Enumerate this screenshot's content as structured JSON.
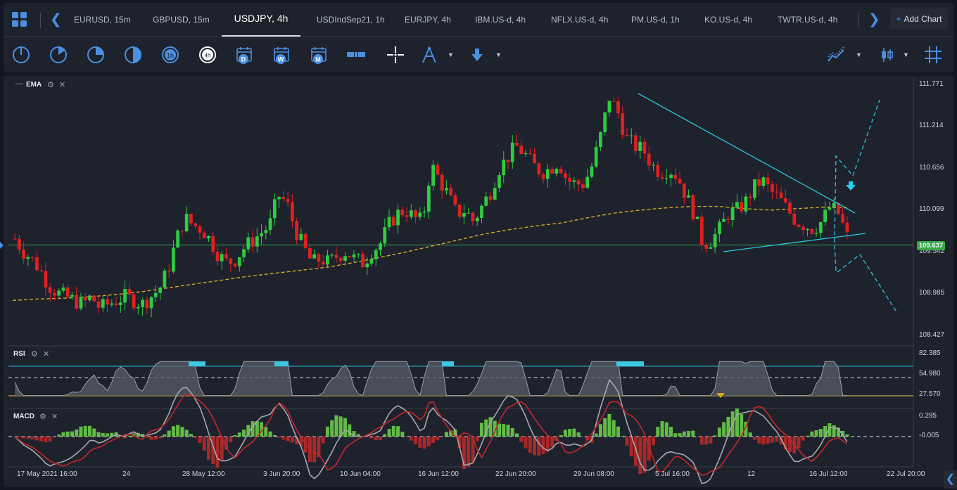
{
  "tabs": [
    {
      "label": "EURUSD, 15m",
      "active": false
    },
    {
      "label": "GBPUSD, 15m",
      "active": false
    },
    {
      "label": "USDJPY, 4h",
      "active": true
    },
    {
      "label": "USDIndSep21, 1h",
      "active": false
    },
    {
      "label": "EURJPY, 4h",
      "active": false
    },
    {
      "label": "IBM.US-d, 4h",
      "active": false
    },
    {
      "label": "NFLX.US-d, 4h",
      "active": false
    },
    {
      "label": "PM.US-d, 1h",
      "active": false
    },
    {
      "label": "KO.US-d, 4h",
      "active": false
    },
    {
      "label": "TWTR.US-d, 4h",
      "active": false
    }
  ],
  "add_chart_label": "Add Chart",
  "toolbar": {
    "icons": [
      "timeframe-1-icon",
      "timeframe-2-icon",
      "timeframe-3-icon",
      "timeframe-4-icon",
      "timeframe-1h-icon",
      "timeframe-4h-icon",
      "calendar-day-icon",
      "calendar-week-icon",
      "calendar-month-icon",
      "bar-chart-icon",
      "crosshair-icon",
      "drawing-tools-icon",
      "arrow-down-icon",
      "indicators-icon",
      "chart-type-icon",
      "grid-icon"
    ],
    "cal_letters": [
      "D",
      "W",
      "M"
    ],
    "tf_label": "4h"
  },
  "colors": {
    "accent": "#4a90e2",
    "bull": "#2ecc40",
    "bear": "#e02020",
    "ema": "#d4a82a",
    "trend": "#29c4d8",
    "price_line": "#36a84a",
    "rsi_upper": "#29b6d8",
    "rsi_lower": "#c8a84a"
  },
  "panels": {
    "price": {
      "label": "EMA"
    },
    "rsi": {
      "label": "RSI"
    },
    "macd": {
      "label": "MACD"
    }
  },
  "price_axis": [
    "111.771",
    "111.214",
    "110.656",
    "110.099",
    "109.542",
    "108.985",
    "108.427"
  ],
  "current_price": "109.637",
  "rsi_axis": [
    "82.385",
    "54.980",
    "27.570"
  ],
  "macd_axis": [
    "0.295",
    "-0.005"
  ],
  "date_labels": [
    "17 May 2021 16:00",
    "24",
    "28 May 12:00",
    "3 Jun 20:00",
    "10 Jun 04:00",
    "16 Jun 12:00",
    "22 Jun 20:00",
    "29 Jun 08:00",
    "5 Jul 16:00",
    "12",
    "16 Jul 12:00",
    "22 Jul 20:00"
  ],
  "chart_data": {
    "type": "candlestick",
    "symbol": "USDJPY",
    "timeframe": "4h",
    "ylim": [
      108.35,
      111.85
    ],
    "close_path": [
      109.72,
      109.55,
      109.45,
      109.3,
      109.1,
      109.0,
      108.95,
      108.9,
      108.85,
      108.95,
      108.8,
      108.85,
      108.9,
      108.95,
      108.9,
      108.85,
      108.95,
      109.05,
      109.3,
      109.7,
      110.0,
      109.9,
      109.85,
      109.7,
      109.5,
      109.4,
      109.45,
      109.6,
      109.7,
      109.8,
      109.9,
      110.3,
      110.2,
      109.85,
      109.6,
      109.4,
      109.45,
      109.4,
      109.5,
      109.55,
      109.45,
      109.4,
      109.55,
      109.65,
      109.9,
      110.05,
      110.1,
      110.0,
      109.95,
      110.7,
      110.5,
      110.3,
      110.05,
      110.1,
      109.95,
      110.15,
      110.35,
      110.65,
      110.8,
      110.95,
      110.85,
      110.7,
      110.6,
      110.65,
      110.75,
      110.5,
      110.45,
      110.45,
      110.7,
      111.1,
      111.6,
      111.4,
      111.05,
      110.95,
      110.9,
      110.7,
      110.6,
      110.65,
      110.55,
      110.3,
      110.05,
      109.65,
      109.7,
      109.85,
      110.05,
      110.1,
      110.2,
      110.4,
      110.5,
      110.35,
      110.25,
      110.1,
      109.95,
      109.9,
      109.85,
      109.95,
      110.15,
      110.05,
      109.75
    ],
    "ema_path": [
      108.9,
      108.92,
      108.93,
      108.95,
      108.98,
      109.02,
      109.07,
      109.12,
      109.17,
      109.22,
      109.26,
      109.3,
      109.34,
      109.4,
      109.47,
      109.54,
      109.62,
      109.7,
      109.78,
      109.84,
      109.89,
      109.93,
      110.0,
      110.06,
      110.1,
      110.13,
      110.15,
      110.15,
      110.12,
      110.1,
      110.12,
      110.14,
      110.13
    ],
    "trendlines": {
      "upper": [
        [
          907,
          133
        ],
        [
          1215,
          303
        ]
      ],
      "lower": [
        [
          1028,
          358
        ],
        [
          1230,
          332
        ]
      ],
      "projection_up": [
        [
          1188,
          385
        ],
        [
          1186,
          345
        ],
        [
          1188,
          222
        ],
        [
          1212,
          250
        ],
        [
          1250,
          142
        ]
      ],
      "projection_down": [
        [
          1190,
          387
        ],
        [
          1222,
          362
        ],
        [
          1275,
          445
        ]
      ],
      "signal_arrow": [
        1209,
        266
      ]
    },
    "rsi": {
      "upper": 75,
      "mid": 54.98,
      "lower": 27.57
    },
    "macd": {
      "zero": -0.005
    }
  }
}
